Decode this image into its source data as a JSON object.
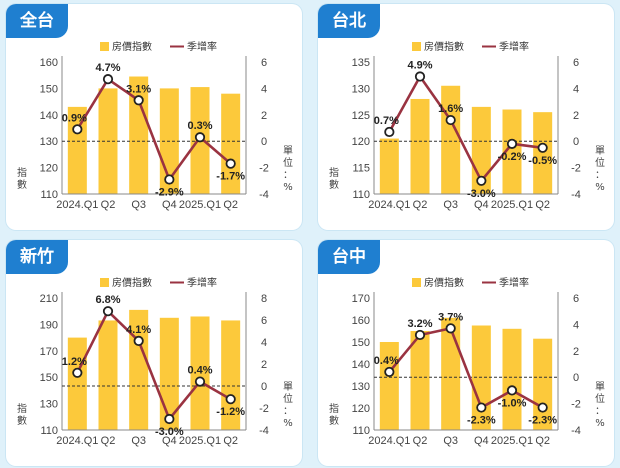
{
  "colors": {
    "bar": "#fcc93b",
    "line": "#9a3341",
    "title_bg": "#1f7fd0",
    "background": "#dff1fa"
  },
  "chart_data": [
    {
      "type": "bar+line",
      "title": "全台",
      "legend": [
        "房價指數",
        "季增率"
      ],
      "categories": [
        "2024.Q1",
        "Q2",
        "Q3",
        "Q4",
        "2025.Q1",
        "Q2"
      ],
      "index_values": [
        143,
        150,
        154.5,
        150,
        150.5,
        148
      ],
      "growth_values": [
        0.9,
        4.7,
        3.1,
        -2.9,
        0.3,
        -1.7
      ],
      "growth_labels": [
        "0.9%",
        "4.7%",
        "3.1%",
        "-2.9%",
        "0.3%",
        "-1.7%"
      ],
      "left_ticks": [
        110,
        120,
        130,
        140,
        150,
        160
      ],
      "right_ticks": [
        -4,
        -2,
        0,
        2,
        4,
        6
      ],
      "ylim_left": [
        110,
        160
      ],
      "ylim_right": [
        -4,
        6
      ],
      "ylabel_left": "指數",
      "ylabel_right": "單位：%"
    },
    {
      "type": "bar+line",
      "title": "台北",
      "legend": [
        "房價指數",
        "季增率"
      ],
      "categories": [
        "2024.Q1",
        "Q2",
        "Q3",
        "Q4",
        "2025.Q1",
        "Q2"
      ],
      "index_values": [
        120.5,
        128,
        130.5,
        126.5,
        126,
        125.5
      ],
      "growth_values": [
        0.7,
        4.9,
        1.6,
        -3.0,
        -0.2,
        -0.5
      ],
      "growth_labels": [
        "0.7%",
        "4.9%",
        "1.6%",
        "-3.0%",
        "-0.2%",
        "-0.5%"
      ],
      "left_ticks": [
        110,
        115,
        120,
        125,
        130,
        135
      ],
      "right_ticks": [
        -4,
        -2,
        0,
        2,
        4,
        6
      ],
      "ylim_left": [
        110,
        135
      ],
      "ylim_right": [
        -4,
        6
      ],
      "ylabel_left": "指數",
      "ylabel_right": "單位：%"
    },
    {
      "type": "bar+line",
      "title": "新竹",
      "legend": [
        "房價指數",
        "季增率"
      ],
      "categories": [
        "2024.Q1",
        "Q2",
        "Q3",
        "Q4",
        "2025.Q1",
        "Q2"
      ],
      "index_values": [
        180,
        193,
        201,
        195,
        196,
        193
      ],
      "growth_values": [
        1.2,
        6.8,
        4.1,
        -3.0,
        0.4,
        -1.2
      ],
      "growth_labels": [
        "1.2%",
        "6.8%",
        "4.1%",
        "-3.0%",
        "0.4%",
        "-1.2%"
      ],
      "left_ticks": [
        110,
        130,
        150,
        170,
        190,
        210
      ],
      "right_ticks": [
        -4,
        -2,
        0,
        2,
        4,
        6,
        8
      ],
      "ylim_left": [
        110,
        210
      ],
      "ylim_right": [
        -4,
        8
      ],
      "ylabel_left": "指數",
      "ylabel_right": "單位：%"
    },
    {
      "type": "bar+line",
      "title": "台中",
      "legend": [
        "房價指數",
        "季增率"
      ],
      "categories": [
        "2024.Q1",
        "Q2",
        "Q3",
        "Q4",
        "2025.Q1",
        "Q2"
      ],
      "index_values": [
        150,
        155,
        161,
        157.5,
        156,
        151.5
      ],
      "growth_values": [
        0.4,
        3.2,
        3.7,
        -2.3,
        -1.0,
        -2.3
      ],
      "growth_labels": [
        "0.4%",
        "3.2%",
        "3.7%",
        "-2.3%",
        "-1.0%",
        "-2.3%"
      ],
      "left_ticks": [
        110,
        120,
        130,
        140,
        150,
        160,
        170
      ],
      "right_ticks": [
        -4,
        -2,
        0,
        2,
        4,
        6
      ],
      "ylim_left": [
        110,
        170
      ],
      "ylim_right": [
        -4,
        6
      ],
      "ylabel_left": "指數",
      "ylabel_right": "單位：%"
    }
  ]
}
